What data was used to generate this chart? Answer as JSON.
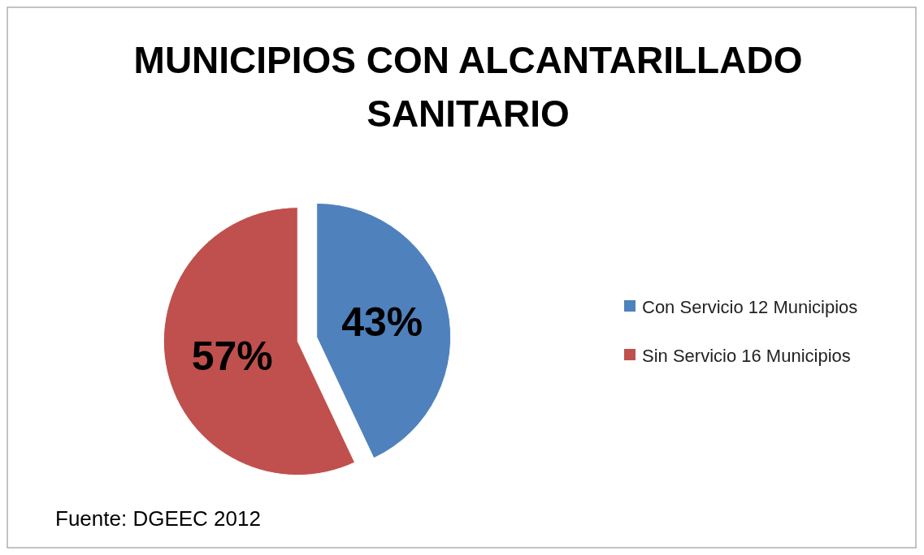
{
  "chart_data": {
    "type": "pie",
    "title": "MUNICIPIOS CON ALCANTARILLADO SANITARIO",
    "categories": [
      "Con Servicio 12 Municipios",
      "Sin Servicio 16 Municipios"
    ],
    "values": [
      43,
      57
    ],
    "colors": [
      "#4f81bd",
      "#c0504d"
    ],
    "value_labels": [
      "43%",
      "57%"
    ],
    "legend": "right",
    "annotations": [
      "Fuente: DGEEC 2012"
    ]
  }
}
